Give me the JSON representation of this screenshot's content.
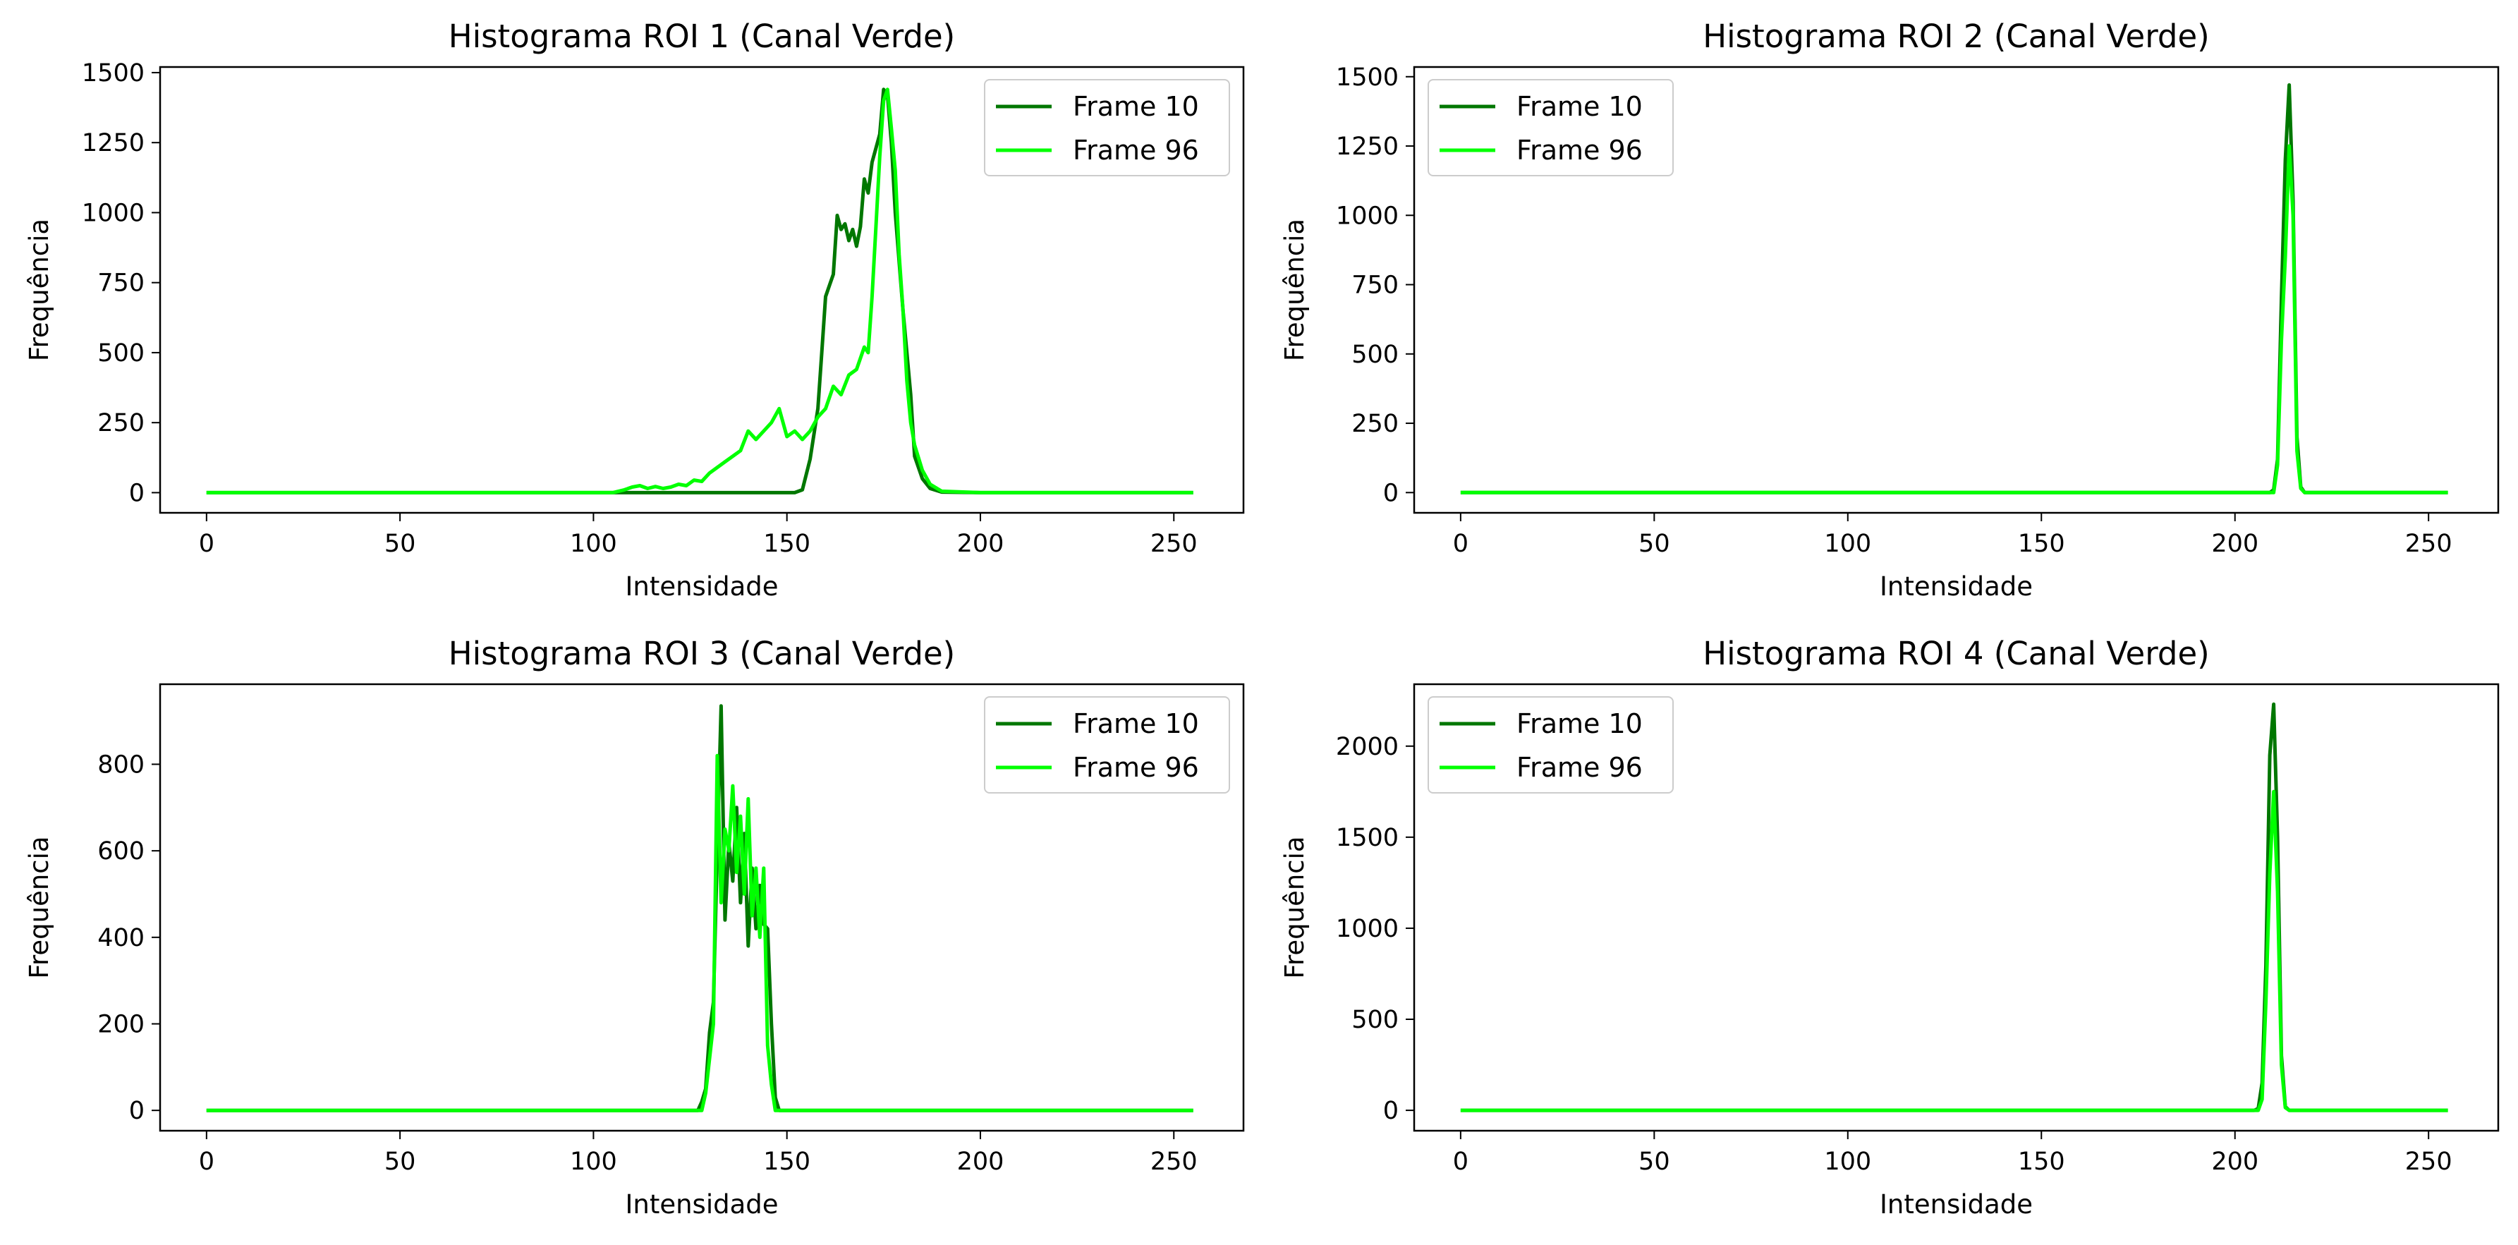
{
  "figure": {
    "background": "#ffffff",
    "series_colors": {
      "frame10": "#007700",
      "frame96": "#00ff00"
    }
  },
  "chart_data": [
    {
      "type": "line",
      "title": "Histograma ROI 1 (Canal Verde)",
      "xlabel": "Intensidade",
      "ylabel": "Frequência",
      "xlim": [
        -12,
        268
      ],
      "ylim": [
        -72,
        1520
      ],
      "xticks": [
        0,
        50,
        100,
        150,
        200,
        250
      ],
      "yticks": [
        0,
        250,
        500,
        750,
        1000,
        1250,
        1500
      ],
      "grid": false,
      "legend": "top-right",
      "series": [
        {
          "name": "Frame 10",
          "color": "#007700",
          "points": [
            [
              0,
              0
            ],
            [
              152,
              0
            ],
            [
              154,
              10
            ],
            [
              156,
              120
            ],
            [
              158,
              300
            ],
            [
              159,
              500
            ],
            [
              160,
              700
            ],
            [
              161,
              740
            ],
            [
              162,
              780
            ],
            [
              163,
              990
            ],
            [
              164,
              940
            ],
            [
              165,
              960
            ],
            [
              166,
              900
            ],
            [
              167,
              940
            ],
            [
              168,
              880
            ],
            [
              169,
              950
            ],
            [
              170,
              1120
            ],
            [
              171,
              1070
            ],
            [
              172,
              1180
            ],
            [
              173,
              1230
            ],
            [
              174,
              1280
            ],
            [
              175,
              1440
            ],
            [
              176,
              1420
            ],
            [
              177,
              1250
            ],
            [
              178,
              1000
            ],
            [
              180,
              650
            ],
            [
              182,
              350
            ],
            [
              183,
              130
            ],
            [
              185,
              50
            ],
            [
              187,
              15
            ],
            [
              190,
              2
            ],
            [
              200,
              0
            ],
            [
              255,
              0
            ]
          ]
        },
        {
          "name": "Frame 96",
          "color": "#00ff00",
          "points": [
            [
              0,
              0
            ],
            [
              105,
              0
            ],
            [
              108,
              10
            ],
            [
              110,
              20
            ],
            [
              112,
              25
            ],
            [
              114,
              15
            ],
            [
              116,
              22
            ],
            [
              118,
              15
            ],
            [
              120,
              20
            ],
            [
              122,
              30
            ],
            [
              124,
              25
            ],
            [
              126,
              45
            ],
            [
              128,
              40
            ],
            [
              130,
              70
            ],
            [
              132,
              90
            ],
            [
              134,
              110
            ],
            [
              136,
              130
            ],
            [
              138,
              150
            ],
            [
              140,
              220
            ],
            [
              142,
              190
            ],
            [
              144,
              220
            ],
            [
              146,
              250
            ],
            [
              148,
              300
            ],
            [
              150,
              200
            ],
            [
              152,
              220
            ],
            [
              154,
              190
            ],
            [
              156,
              220
            ],
            [
              158,
              270
            ],
            [
              160,
              300
            ],
            [
              162,
              380
            ],
            [
              164,
              350
            ],
            [
              166,
              420
            ],
            [
              168,
              440
            ],
            [
              170,
              520
            ],
            [
              171,
              500
            ],
            [
              172,
              700
            ],
            [
              173,
              950
            ],
            [
              174,
              1200
            ],
            [
              175,
              1400
            ],
            [
              176,
              1440
            ],
            [
              177,
              1300
            ],
            [
              178,
              1150
            ],
            [
              179,
              850
            ],
            [
              180,
              650
            ],
            [
              181,
              400
            ],
            [
              182,
              250
            ],
            [
              183,
              170
            ],
            [
              185,
              80
            ],
            [
              187,
              30
            ],
            [
              190,
              5
            ],
            [
              200,
              0
            ],
            [
              255,
              0
            ]
          ]
        }
      ]
    },
    {
      "type": "line",
      "title": "Histograma ROI 2 (Canal Verde)",
      "xlabel": "Intensidade",
      "ylabel": "Frequência",
      "xlim": [
        -12,
        268
      ],
      "ylim": [
        -73,
        1535
      ],
      "xticks": [
        0,
        50,
        100,
        150,
        200,
        250
      ],
      "yticks": [
        0,
        250,
        500,
        750,
        1000,
        1250,
        1500
      ],
      "grid": false,
      "legend": "top-left",
      "series": [
        {
          "name": "Frame 10",
          "color": "#007700",
          "points": [
            [
              0,
              0
            ],
            [
              209,
              0
            ],
            [
              210,
              10
            ],
            [
              211,
              120
            ],
            [
              212,
              700
            ],
            [
              213,
              1200
            ],
            [
              214,
              1470
            ],
            [
              215,
              1050
            ],
            [
              216,
              200
            ],
            [
              217,
              20
            ],
            [
              218,
              0
            ],
            [
              255,
              0
            ]
          ]
        },
        {
          "name": "Frame 96",
          "color": "#00ff00",
          "points": [
            [
              0,
              0
            ],
            [
              210,
              0
            ],
            [
              211,
              100
            ],
            [
              212,
              550
            ],
            [
              213,
              850
            ],
            [
              214,
              1250
            ],
            [
              215,
              1000
            ],
            [
              216,
              150
            ],
            [
              217,
              15
            ],
            [
              218,
              0
            ],
            [
              255,
              0
            ]
          ]
        }
      ]
    },
    {
      "type": "line",
      "title": "Histograma ROI 3 (Canal Verde)",
      "xlabel": "Intensidade",
      "ylabel": "Frequência",
      "xlim": [
        -12,
        268
      ],
      "ylim": [
        -47,
        985
      ],
      "xticks": [
        0,
        50,
        100,
        150,
        200,
        250
      ],
      "yticks": [
        0,
        200,
        400,
        600,
        800
      ],
      "grid": false,
      "legend": "top-right",
      "series": [
        {
          "name": "Frame 10",
          "color": "#007700",
          "points": [
            [
              0,
              0
            ],
            [
              127,
              0
            ],
            [
              128,
              20
            ],
            [
              129,
              50
            ],
            [
              130,
              180
            ],
            [
              131,
              250
            ],
            [
              132,
              600
            ],
            [
              133,
              935
            ],
            [
              134,
              440
            ],
            [
              135,
              620
            ],
            [
              136,
              530
            ],
            [
              137,
              700
            ],
            [
              138,
              480
            ],
            [
              139,
              640
            ],
            [
              140,
              380
            ],
            [
              141,
              560
            ],
            [
              142,
              420
            ],
            [
              143,
              520
            ],
            [
              144,
              430
            ],
            [
              145,
              420
            ],
            [
              146,
              200
            ],
            [
              147,
              30
            ],
            [
              148,
              0
            ],
            [
              255,
              0
            ]
          ]
        },
        {
          "name": "Frame 96",
          "color": "#00ff00",
          "points": [
            [
              0,
              0
            ],
            [
              128,
              0
            ],
            [
              129,
              40
            ],
            [
              130,
              120
            ],
            [
              131,
              200
            ],
            [
              132,
              820
            ],
            [
              133,
              480
            ],
            [
              134,
              650
            ],
            [
              135,
              600
            ],
            [
              136,
              750
            ],
            [
              137,
              550
            ],
            [
              138,
              680
            ],
            [
              139,
              500
            ],
            [
              140,
              720
            ],
            [
              141,
              450
            ],
            [
              142,
              560
            ],
            [
              143,
              400
            ],
            [
              144,
              560
            ],
            [
              145,
              150
            ],
            [
              146,
              60
            ],
            [
              147,
              0
            ],
            [
              255,
              0
            ]
          ]
        }
      ]
    },
    {
      "type": "line",
      "title": "Histograma ROI 4 (Canal Verde)",
      "xlabel": "Intensidade",
      "ylabel": "Frequência",
      "xlim": [
        -12,
        268
      ],
      "ylim": [
        -112,
        2340
      ],
      "xticks": [
        0,
        50,
        100,
        150,
        200,
        250
      ],
      "yticks": [
        0,
        500,
        1000,
        1500,
        2000
      ],
      "grid": false,
      "legend": "top-left",
      "series": [
        {
          "name": "Frame 10",
          "color": "#007700",
          "points": [
            [
              0,
              0
            ],
            [
              205,
              0
            ],
            [
              206,
              10
            ],
            [
              207,
              150
            ],
            [
              208,
              800
            ],
            [
              209,
              1950
            ],
            [
              210,
              2230
            ],
            [
              211,
              1500
            ],
            [
              212,
              300
            ],
            [
              213,
              20
            ],
            [
              214,
              0
            ],
            [
              255,
              0
            ]
          ]
        },
        {
          "name": "Frame 96",
          "color": "#00ff00",
          "points": [
            [
              0,
              0
            ],
            [
              206,
              0
            ],
            [
              207,
              60
            ],
            [
              208,
              600
            ],
            [
              209,
              1300
            ],
            [
              210,
              1750
            ],
            [
              211,
              1200
            ],
            [
              212,
              250
            ],
            [
              213,
              15
            ],
            [
              214,
              0
            ],
            [
              255,
              0
            ]
          ]
        }
      ]
    }
  ]
}
